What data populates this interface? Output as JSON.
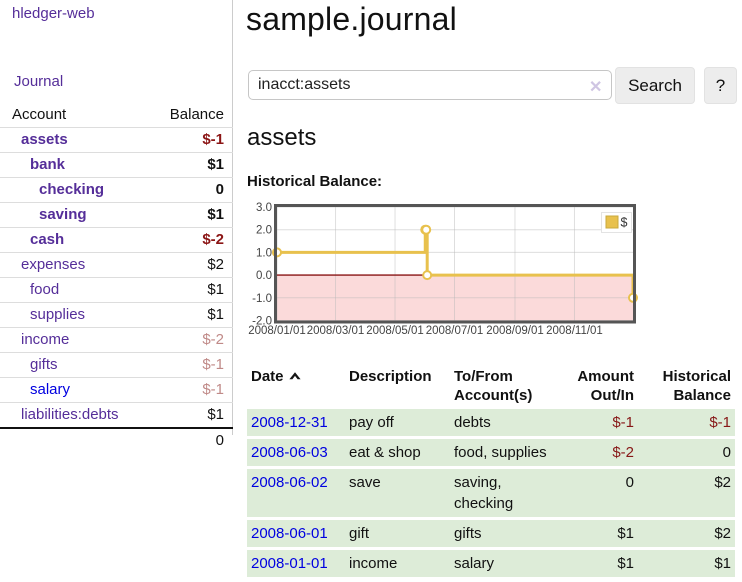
{
  "sidebar": {
    "app_title": "hledger-web",
    "nav": {
      "journal": "Journal"
    },
    "accounts_table": {
      "headers": {
        "account": "Account",
        "balance": "Balance"
      },
      "accounts": [
        {
          "name": "assets",
          "depth": 1,
          "balance": "$-1",
          "in_query": true,
          "negative": true,
          "visited": true
        },
        {
          "name": "bank",
          "depth": 2,
          "balance": "$1",
          "in_query": true,
          "negative": false,
          "visited": true
        },
        {
          "name": "checking",
          "depth": 3,
          "balance": "0",
          "in_query": true,
          "negative": false,
          "visited": true
        },
        {
          "name": "saving",
          "depth": 3,
          "balance": "$1",
          "in_query": true,
          "negative": false,
          "visited": true
        },
        {
          "name": "cash",
          "depth": 2,
          "balance": "$-2",
          "in_query": true,
          "negative": true,
          "visited": true
        },
        {
          "name": "expenses",
          "depth": 1,
          "balance": "$2",
          "in_query": false,
          "negative": false,
          "visited": true
        },
        {
          "name": "food",
          "depth": 2,
          "balance": "$1",
          "in_query": false,
          "negative": false,
          "visited": true
        },
        {
          "name": "supplies",
          "depth": 2,
          "balance": "$1",
          "in_query": false,
          "negative": false,
          "visited": true
        },
        {
          "name": "income",
          "depth": 1,
          "balance": "$-2",
          "in_query": false,
          "negative": true,
          "visited": true
        },
        {
          "name": "gifts",
          "depth": 2,
          "balance": "$-1",
          "in_query": false,
          "negative": true,
          "visited": true
        },
        {
          "name": "salary",
          "depth": 2,
          "balance": "$-1",
          "in_query": false,
          "negative": true,
          "visited": false
        },
        {
          "name": "liabilities:debts",
          "depth": 1,
          "balance": "$1",
          "in_query": false,
          "negative": false,
          "visited": true
        }
      ],
      "total": "0"
    }
  },
  "main": {
    "title": "sample.journal",
    "search": {
      "value": "inacct:assets",
      "clear_icon": "✕",
      "button": "Search",
      "help_button": "?"
    },
    "account_heading": "assets",
    "chart_label": "Historical Balance:",
    "register_table": {
      "headers": {
        "date": "Date",
        "description": "Description",
        "accounts": "To/From Account(s)",
        "amount": "Amount Out/In",
        "balance": "Historical Balance"
      },
      "rows": [
        {
          "date": "2008-12-31",
          "description": "pay off",
          "accounts": "debts",
          "amount": "$-1",
          "balance": "$-1"
        },
        {
          "date": "2008-06-03",
          "description": "eat & shop",
          "accounts": "food, supplies",
          "amount": "$-2",
          "balance": "0"
        },
        {
          "date": "2008-06-02",
          "description": "save",
          "accounts": "saving, checking",
          "amount": "0",
          "balance": "$2"
        },
        {
          "date": "2008-06-01",
          "description": "gift",
          "accounts": "gifts",
          "amount": "$1",
          "balance": "$2"
        },
        {
          "date": "2008-01-01",
          "description": "income",
          "accounts": "salary",
          "amount": "$1",
          "balance": "$1"
        }
      ]
    }
  },
  "chart_data": {
    "type": "line",
    "title": "Historical Balance",
    "series": [
      {
        "name": "$",
        "style": "step",
        "color": "#e8c14d",
        "points": [
          [
            "2008-01-01",
            1
          ],
          [
            "2008-06-01",
            2
          ],
          [
            "2008-06-02",
            2
          ],
          [
            "2008-06-03",
            0
          ],
          [
            "2008-12-31",
            -1
          ]
        ]
      }
    ],
    "xlim": [
      "2008-01-01",
      "2008-12-31"
    ],
    "ylim": [
      -2,
      3
    ],
    "yticks": [
      {
        "v": 3,
        "label": "3.0"
      },
      {
        "v": 2,
        "label": "2.0"
      },
      {
        "v": 1,
        "label": "1.0"
      },
      {
        "v": 0,
        "label": "0.0"
      },
      {
        "v": -1,
        "label": "-1.0"
      },
      {
        "v": -2,
        "label": "-2.0"
      }
    ],
    "xticks": [
      {
        "v": "2008-01-01",
        "label": "2008/01/01"
      },
      {
        "v": "2008-03-01",
        "label": "2008/03/01"
      },
      {
        "v": "2008-05-01",
        "label": "2008/05/01"
      },
      {
        "v": "2008-07-01",
        "label": "2008/07/01"
      },
      {
        "v": "2008-09-01",
        "label": "2008/09/01"
      },
      {
        "v": "2008-11-01",
        "label": "2008/11/01"
      }
    ],
    "legend": {
      "position": "top-right",
      "label": "$"
    },
    "grid": true,
    "negative_region_color": "#fbdada",
    "zero_line_color": "#8a1515",
    "grid_color": "#b8b8b8",
    "border_color": "#555555",
    "tick_text_color": "#444444"
  }
}
